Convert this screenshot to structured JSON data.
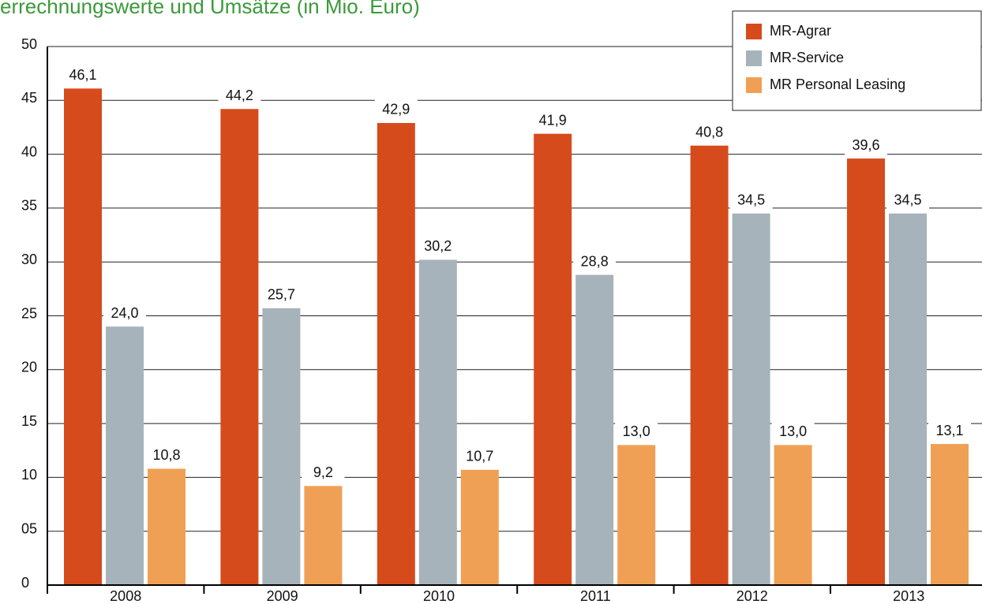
{
  "chart_data": {
    "type": "bar",
    "title": "errechnungswerte und Umsätze (in Mio. Euro)",
    "categories": [
      "2008",
      "2009",
      "2010",
      "2011",
      "2012",
      "2013"
    ],
    "series": [
      {
        "name": "MR-Agrar",
        "color": "#d64b1c",
        "values": [
          46.1,
          44.2,
          42.9,
          41.9,
          40.8,
          39.6
        ],
        "value_labels": [
          "46,1",
          "44,2",
          "42,9",
          "41,9",
          "40,8",
          "39,6"
        ]
      },
      {
        "name": "MR-Service",
        "color": "#a7b3ba",
        "values": [
          24.0,
          25.7,
          30.2,
          28.8,
          34.5,
          34.5
        ],
        "value_labels": [
          "24,0",
          "25,7",
          "30,2",
          "28,8",
          "34,5",
          "34,5"
        ]
      },
      {
        "name": "MR Personal Leasing",
        "color": "#f0a055",
        "values": [
          10.8,
          9.2,
          10.7,
          13.0,
          13.0,
          13.1
        ],
        "value_labels": [
          "10,8",
          "9,2",
          "10,7",
          "13,0",
          "13,0",
          "13,1"
        ]
      }
    ],
    "ylim": [
      0,
      50
    ],
    "yticks": [
      0,
      {
        "value": 5,
        "label": "05"
      },
      10,
      15,
      20,
      25,
      30,
      35,
      40,
      45,
      50
    ],
    "grid": true,
    "legend": "top-right"
  }
}
